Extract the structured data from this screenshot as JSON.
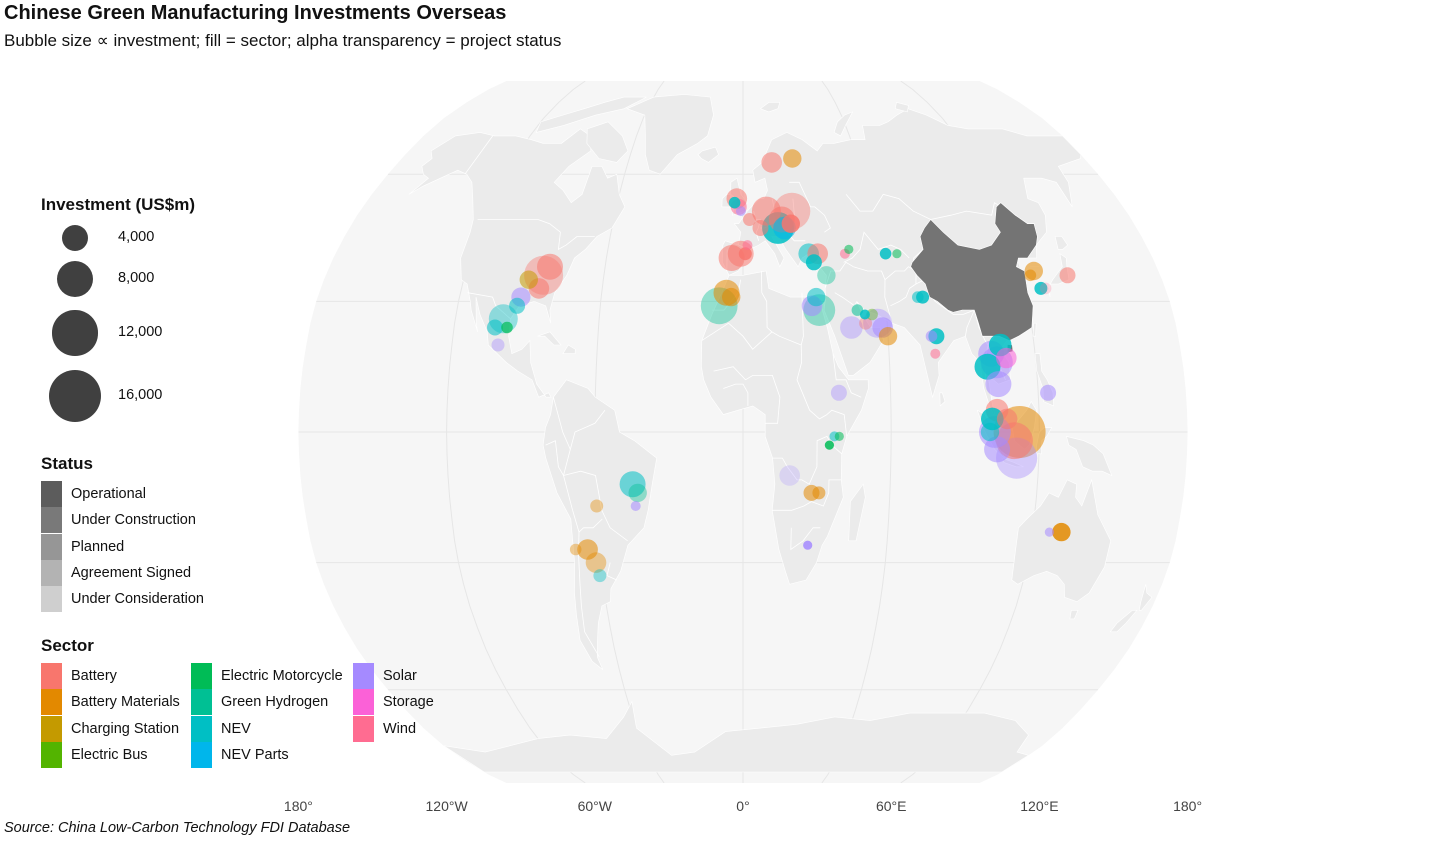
{
  "title": "Chinese Green Manufacturing Investments Overseas",
  "subtitle": "Bubble size ∝ investment; fill = sector; alpha transparency = project status",
  "source": "Source: China Low-Carbon Technology FDI Database",
  "colors": {
    "land": "#ebebeb",
    "ocean": "#ffffff",
    "border": "#ffffff",
    "china": "#747474",
    "graticule": "#e6e6e6"
  },
  "legend": {
    "investment": {
      "title": "Investment (US$m)",
      "items": [
        {
          "label": "4,000",
          "value": 4000
        },
        {
          "label": "8,000",
          "value": 8000
        },
        {
          "label": "12,000",
          "value": 12000
        },
        {
          "label": "16,000",
          "value": 16000
        }
      ]
    },
    "status": {
      "title": "Status",
      "items": [
        {
          "label": "Operational",
          "alpha": 0.85
        },
        {
          "label": "Under Construction",
          "alpha": 0.7
        },
        {
          "label": "Planned",
          "alpha": 0.55
        },
        {
          "label": "Agreement Signed",
          "alpha": 0.4
        },
        {
          "label": "Under Consideration",
          "alpha": 0.25
        }
      ]
    },
    "sector": {
      "title": "Sector",
      "items": [
        {
          "label": "Battery",
          "color": "#F8766D"
        },
        {
          "label": "Battery Materials",
          "color": "#E38900"
        },
        {
          "label": "Charging Station",
          "color": "#C49A00"
        },
        {
          "label": "Electric Bus",
          "color": "#53B400"
        },
        {
          "label": "Electric Motorcycle",
          "color": "#00BC56"
        },
        {
          "label": "Green Hydrogen",
          "color": "#00C094"
        },
        {
          "label": "NEV",
          "color": "#00BFC4"
        },
        {
          "label": "NEV Parts",
          "color": "#00B6EB"
        },
        {
          "label": "Solar",
          "color": "#A58AFF"
        },
        {
          "label": "Storage",
          "color": "#FB61D7"
        },
        {
          "label": "Wind",
          "color": "#FF6C91"
        }
      ]
    }
  },
  "axis": {
    "x_ticks": [
      "180°",
      "120°W",
      "60°W",
      "0°",
      "60°E",
      "120°E",
      "180°"
    ],
    "x_values": [
      -180,
      -120,
      -60,
      0,
      60,
      120,
      180
    ]
  },
  "chart_data": {
    "type": "scatter",
    "title": "Chinese Green Manufacturing Investments Overseas",
    "subtitle": "Bubble size ∝ investment; fill = sector; alpha transparency = project status",
    "projection": "Robinson",
    "xlim": [
      -180,
      180
    ],
    "ylim": [
      -90,
      90
    ],
    "highlighted_country": "China",
    "points": [
      {
        "lon": -86,
        "lat": 36,
        "value": 9000,
        "sector": "Battery",
        "status": "Agreement Signed"
      },
      {
        "lon": -84,
        "lat": 38,
        "value": 4000,
        "sector": "Battery",
        "status": "Planned"
      },
      {
        "lon": -87,
        "lat": 33,
        "value": 2500,
        "sector": "Battery",
        "status": "Planned"
      },
      {
        "lon": -92,
        "lat": 35,
        "value": 2000,
        "sector": "Charging Station",
        "status": "Planned"
      },
      {
        "lon": -94,
        "lat": 31,
        "value": 2200,
        "sector": "Solar",
        "status": "Planned"
      },
      {
        "lon": -95,
        "lat": 29,
        "value": 1500,
        "sector": "NEV",
        "status": "Planned"
      },
      {
        "lon": -100,
        "lat": 26,
        "value": 5000,
        "sector": "NEV",
        "status": "Agreement Signed"
      },
      {
        "lon": -103,
        "lat": 24,
        "value": 1500,
        "sector": "NEV",
        "status": "Planned"
      },
      {
        "lon": -98,
        "lat": 24,
        "value": 800,
        "sector": "Electric Motorcycle",
        "status": "Under Construction"
      },
      {
        "lon": -101,
        "lat": 20,
        "value": 1000,
        "sector": "Solar",
        "status": "Agreement Signed"
      },
      {
        "lon": -45,
        "lat": -12,
        "value": 4000,
        "sector": "NEV",
        "status": "Planned"
      },
      {
        "lon": -43,
        "lat": -14,
        "value": 2000,
        "sector": "Green Hydrogen",
        "status": "Agreement Signed"
      },
      {
        "lon": -44,
        "lat": -17,
        "value": 600,
        "sector": "Solar",
        "status": "Planned"
      },
      {
        "lon": -60,
        "lat": -17,
        "value": 1000,
        "sector": "Battery Materials",
        "status": "Agreement Signed"
      },
      {
        "lon": -65,
        "lat": -27,
        "value": 2500,
        "sector": "Battery Materials",
        "status": "Planned"
      },
      {
        "lon": -62,
        "lat": -30,
        "value": 2500,
        "sector": "Battery Materials",
        "status": "Agreement Signed"
      },
      {
        "lon": -70,
        "lat": -27,
        "value": 800,
        "sector": "Battery Materials",
        "status": "Agreement Signed"
      },
      {
        "lon": -61,
        "lat": -33,
        "value": 1000,
        "sector": "NEV",
        "status": "Agreement Signed"
      },
      {
        "lon": -3,
        "lat": 54,
        "value": 2500,
        "sector": "Battery",
        "status": "Planned"
      },
      {
        "lon": -2,
        "lat": 52,
        "value": 1500,
        "sector": "Wind",
        "status": "Planned"
      },
      {
        "lon": -4,
        "lat": 53,
        "value": 800,
        "sector": "NEV",
        "status": "Operational"
      },
      {
        "lon": -1,
        "lat": 51,
        "value": 600,
        "sector": "Solar",
        "status": "Planned"
      },
      {
        "lon": 15,
        "lat": 63,
        "value": 2500,
        "sector": "Battery",
        "status": "Planned"
      },
      {
        "lon": 26,
        "lat": 64,
        "value": 2000,
        "sector": "Battery Materials",
        "status": "Planned"
      },
      {
        "lon": 23,
        "lat": 51,
        "value": 8000,
        "sector": "Battery",
        "status": "Agreement Signed"
      },
      {
        "lon": 11,
        "lat": 51,
        "value": 5000,
        "sector": "Battery",
        "status": "Planned"
      },
      {
        "lon": 18,
        "lat": 49,
        "value": 4000,
        "sector": "Battery",
        "status": "Planned"
      },
      {
        "lon": 16,
        "lat": 47,
        "value": 6000,
        "sector": "NEV",
        "status": "Operational"
      },
      {
        "lon": 19,
        "lat": 47,
        "value": 3000,
        "sector": "NEV Parts",
        "status": "Planned"
      },
      {
        "lon": 22,
        "lat": 48,
        "value": 2000,
        "sector": "Battery",
        "status": "Operational"
      },
      {
        "lon": 8,
        "lat": 47,
        "value": 1500,
        "sector": "Battery",
        "status": "Planned"
      },
      {
        "lon": 3,
        "lat": 49,
        "value": 1000,
        "sector": "Battery",
        "status": "Planned"
      },
      {
        "lon": -5,
        "lat": 40,
        "value": 4000,
        "sector": "Battery",
        "status": "Planned"
      },
      {
        "lon": -1,
        "lat": 41,
        "value": 4000,
        "sector": "Battery",
        "status": "Planned"
      },
      {
        "lon": 1,
        "lat": 41,
        "value": 1000,
        "sector": "Battery",
        "status": "Operational"
      },
      {
        "lon": 2,
        "lat": 43,
        "value": 600,
        "sector": "Wind",
        "status": "Planned"
      },
      {
        "lon": 29,
        "lat": 41,
        "value": 2500,
        "sector": "NEV",
        "status": "Planned"
      },
      {
        "lon": 33,
        "lat": 41,
        "value": 2500,
        "sector": "Battery",
        "status": "Planned"
      },
      {
        "lon": 31,
        "lat": 39,
        "value": 1500,
        "sector": "NEV",
        "status": "Operational"
      },
      {
        "lon": 36,
        "lat": 36,
        "value": 2000,
        "sector": "Green Hydrogen",
        "status": "Agreement Signed"
      },
      {
        "lon": -7,
        "lat": 32,
        "value": 4000,
        "sector": "Battery Materials",
        "status": "Planned"
      },
      {
        "lon": -10,
        "lat": 29,
        "value": 8000,
        "sector": "Green Hydrogen",
        "status": "Agreement Signed"
      },
      {
        "lon": -5,
        "lat": 31,
        "value": 2000,
        "sector": "Battery Materials",
        "status": "Planned"
      },
      {
        "lon": 32,
        "lat": 28,
        "value": 6000,
        "sector": "Green Hydrogen",
        "status": "Agreement Signed"
      },
      {
        "lon": 29,
        "lat": 29,
        "value": 2500,
        "sector": "Solar",
        "status": "Planned"
      },
      {
        "lon": 31,
        "lat": 31,
        "value": 2000,
        "sector": "NEV",
        "status": "Planned"
      },
      {
        "lon": 45,
        "lat": 24,
        "value": 3000,
        "sector": "Solar",
        "status": "Agreement Signed"
      },
      {
        "lon": 56,
        "lat": 25,
        "value": 5000,
        "sector": "Solar",
        "status": "Agreement Signed"
      },
      {
        "lon": 58,
        "lat": 24,
        "value": 2500,
        "sector": "Solar",
        "status": "Planned"
      },
      {
        "lon": 60,
        "lat": 22,
        "value": 2000,
        "sector": "Battery Materials",
        "status": "Planned"
      },
      {
        "lon": 51,
        "lat": 25,
        "value": 1000,
        "sector": "Battery",
        "status": "Agreement Signed"
      },
      {
        "lon": 54,
        "lat": 27,
        "value": 800,
        "sector": "Electric Bus",
        "status": "Agreement Signed"
      },
      {
        "lon": 48,
        "lat": 28,
        "value": 800,
        "sector": "Green Hydrogen",
        "status": "Planned"
      },
      {
        "lon": 51,
        "lat": 27,
        "value": 600,
        "sector": "NEV",
        "status": "Operational"
      },
      {
        "lon": 39,
        "lat": 9,
        "value": 1500,
        "sector": "Solar",
        "status": "Agreement Signed"
      },
      {
        "lon": 37,
        "lat": -1,
        "value": 600,
        "sector": "NEV",
        "status": "Planned"
      },
      {
        "lon": 35,
        "lat": -3,
        "value": 500,
        "sector": "Electric Motorcycle",
        "status": "Operational"
      },
      {
        "lon": 39,
        "lat": -1,
        "value": 500,
        "sector": "Electric Motorcycle",
        "status": "Planned"
      },
      {
        "lon": 19,
        "lat": -10,
        "value": 2500,
        "sector": "Solar",
        "status": "Under Consideration"
      },
      {
        "lon": 28,
        "lat": -14,
        "value": 1500,
        "sector": "Battery Materials",
        "status": "Planned"
      },
      {
        "lon": 31,
        "lat": -14,
        "value": 1000,
        "sector": "Battery Materials",
        "status": "Planned"
      },
      {
        "lon": 27,
        "lat": -26,
        "value": 500,
        "sector": "Solar",
        "status": "Operational"
      },
      {
        "lon": 45,
        "lat": 41,
        "value": 600,
        "sector": "Wind",
        "status": "Planned"
      },
      {
        "lon": 47,
        "lat": 42,
        "value": 500,
        "sector": "Electric Motorcycle",
        "status": "Planned"
      },
      {
        "lon": 63,
        "lat": 41,
        "value": 800,
        "sector": "NEV",
        "status": "Operational"
      },
      {
        "lon": 68,
        "lat": 41,
        "value": 500,
        "sector": "Electric Motorcycle",
        "status": "Planned"
      },
      {
        "lon": 74,
        "lat": 31,
        "value": 800,
        "sector": "NEV",
        "status": "Planned"
      },
      {
        "lon": 76,
        "lat": 31,
        "value": 1000,
        "sector": "NEV",
        "status": "Operational"
      },
      {
        "lon": 80,
        "lat": 22,
        "value": 1500,
        "sector": "NEV",
        "status": "Operational"
      },
      {
        "lon": 78,
        "lat": 22,
        "value": 800,
        "sector": "Solar",
        "status": "Planned"
      },
      {
        "lon": 79,
        "lat": 18,
        "value": 600,
        "sector": "Wind",
        "status": "Planned"
      },
      {
        "lon": 102,
        "lat": 18,
        "value": 4000,
        "sector": "Solar",
        "status": "Planned"
      },
      {
        "lon": 104,
        "lat": 16,
        "value": 6000,
        "sector": "Solar",
        "status": "Planned"
      },
      {
        "lon": 100,
        "lat": 15,
        "value": 4000,
        "sector": "NEV",
        "status": "Operational"
      },
      {
        "lon": 106,
        "lat": 20,
        "value": 3000,
        "sector": "NEV",
        "status": "Operational"
      },
      {
        "lon": 108,
        "lat": 17,
        "value": 2500,
        "sector": "Storage",
        "status": "Planned"
      },
      {
        "lon": 104,
        "lat": 11,
        "value": 4000,
        "sector": "Solar",
        "status": "Planned"
      },
      {
        "lon": 103,
        "lat": 5,
        "value": 3000,
        "sector": "Battery",
        "status": "Planned"
      },
      {
        "lon": 101,
        "lat": 3,
        "value": 3000,
        "sector": "NEV",
        "status": "Operational"
      },
      {
        "lon": 102,
        "lat": 0,
        "value": 6000,
        "sector": "Solar",
        "status": "Planned"
      },
      {
        "lon": 112,
        "lat": 0,
        "value": 16000,
        "sector": "Battery Materials",
        "status": "Planned"
      },
      {
        "lon": 111,
        "lat": -6,
        "value": 10000,
        "sector": "Solar",
        "status": "Agreement Signed"
      },
      {
        "lon": 110,
        "lat": -2,
        "value": 8000,
        "sector": "Battery",
        "status": "Planned"
      },
      {
        "lon": 103,
        "lat": -4,
        "value": 4000,
        "sector": "Solar",
        "status": "Planned"
      },
      {
        "lon": 100,
        "lat": 0,
        "value": 2000,
        "sector": "NEV",
        "status": "Planned"
      },
      {
        "lon": 107,
        "lat": 3,
        "value": 2500,
        "sector": "Battery",
        "status": "Planned"
      },
      {
        "lon": 124,
        "lat": 9,
        "value": 1500,
        "sector": "Solar",
        "status": "Planned"
      },
      {
        "lon": 126,
        "lat": 37,
        "value": 2000,
        "sector": "Battery Materials",
        "status": "Planned"
      },
      {
        "lon": 124,
        "lat": 36,
        "value": 800,
        "sector": "Battery Materials",
        "status": "Planned"
      },
      {
        "lon": 127,
        "lat": 33,
        "value": 1000,
        "sector": "NEV",
        "status": "Operational"
      },
      {
        "lon": 129,
        "lat": 33,
        "value": 800,
        "sector": "Wind",
        "status": "Under Consideration"
      },
      {
        "lon": 140,
        "lat": 36,
        "value": 1500,
        "sector": "Battery",
        "status": "Planned"
      },
      {
        "lon": 132,
        "lat": -23,
        "value": 2000,
        "sector": "Battery Materials",
        "status": "Operational"
      },
      {
        "lon": 127,
        "lat": -23,
        "value": 500,
        "sector": "Solar",
        "status": "Planned"
      }
    ]
  }
}
